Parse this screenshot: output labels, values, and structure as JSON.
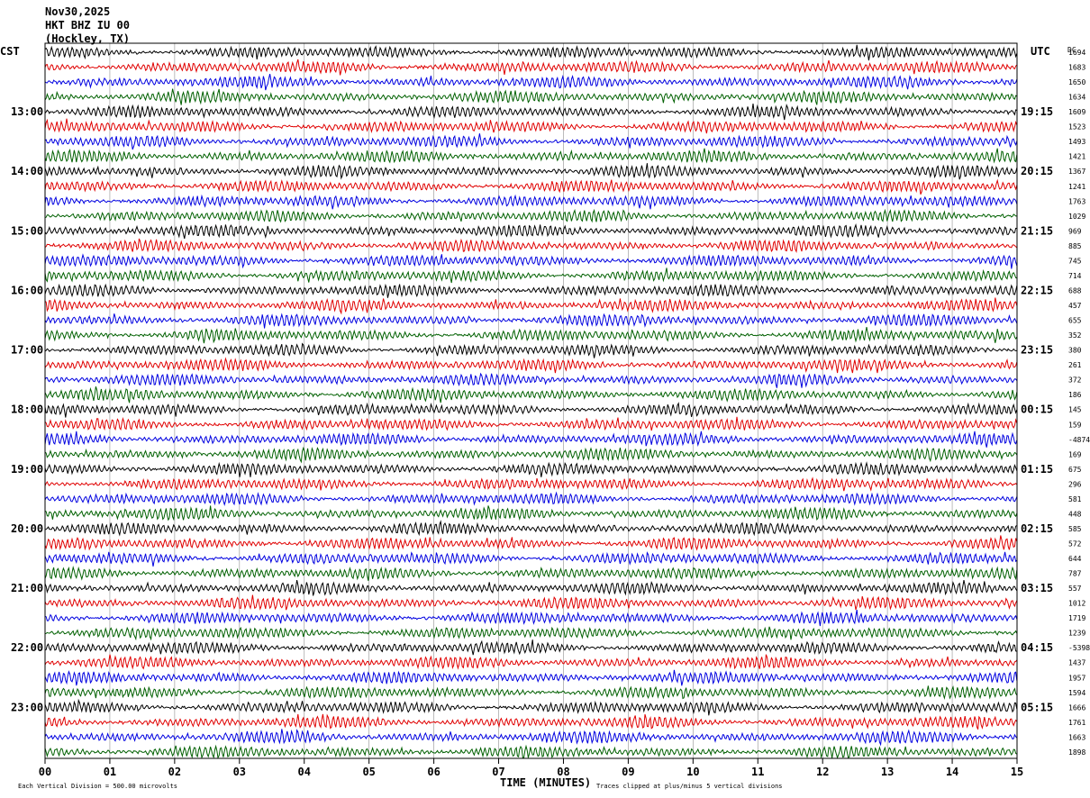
{
  "header": {
    "date": "Nov30,2025",
    "station": "HKT BHZ IU 00",
    "location": "(Hockley, TX)"
  },
  "left_axis_label": "CST",
  "right_axis_label": "UTC",
  "dc_label": "DC",
  "footer": {
    "scale_note": "Each Vertical Division =  500.00 microvolts",
    "x_axis_title": "TIME (MINUTES)",
    "clip_note": "Traces clipped at plus/minus 5 vertical divisions"
  },
  "colors": {
    "cycle": [
      "#000000",
      "#e00000",
      "#0000e0",
      "#006000"
    ],
    "grid": "#a0a0a0"
  },
  "chart_data": {
    "type": "line",
    "title": "HKT BHZ IU 00 (Hockley, TX) Nov30,2025",
    "xlabel": "TIME (MINUTES)",
    "x_range": [
      0,
      15
    ],
    "x_ticks": [
      "00",
      "01",
      "02",
      "03",
      "04",
      "05",
      "06",
      "07",
      "08",
      "09",
      "10",
      "11",
      "12",
      "13",
      "14",
      "15"
    ],
    "traces_per_hour": 4,
    "trace_count": 48,
    "color_cycle": [
      "black",
      "red",
      "blue",
      "green"
    ],
    "cst_hour_labels": [
      "13:00",
      "14:00",
      "15:00",
      "16:00",
      "17:00",
      "18:00",
      "19:00",
      "20:00",
      "21:00",
      "22:00",
      "23:00"
    ],
    "utc_hour_labels": [
      "19:15",
      "20:15",
      "21:15",
      "22:15",
      "23:15",
      "00:15",
      "01:15",
      "02:15",
      "03:15",
      "04:15",
      "05:15"
    ],
    "dc_values": [
      "1694",
      "1683",
      "1650",
      "1634",
      "1609",
      "1523",
      "1493",
      "1421",
      "1367",
      "1241",
      "1763",
      "1029",
      "969",
      "885",
      "745",
      "714",
      "688",
      "457",
      "655",
      "352",
      "380",
      "261",
      "372",
      "186",
      "145",
      "159",
      "-4874",
      "169",
      "675",
      "296",
      "581",
      "448",
      "585",
      "572",
      "644",
      "787",
      "557",
      "1012",
      "1719",
      "1239",
      "-5398",
      "1437",
      "1957",
      "1594",
      "1666",
      "1761",
      "1663",
      "1898"
    ],
    "scale": "Each Vertical Division =  500.00 microvolts",
    "clip": "Traces clipped at plus/minus 5 vertical divisions",
    "grid": true
  }
}
